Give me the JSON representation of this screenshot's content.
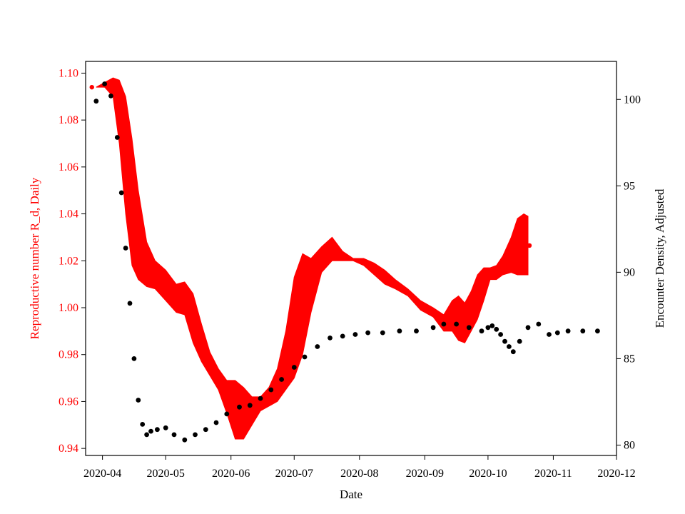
{
  "chart_data": {
    "type": "scatter",
    "xlabel": "Date",
    "ylabel_left": "Reproductive number R_d, Daily",
    "ylabel_right": "Encounter Density, Adjusted",
    "x_range": [
      "2020-03-24",
      "2020-12-01"
    ],
    "ylim_left": [
      0.937,
      1.105
    ],
    "ylim_right": [
      79.4,
      102.2
    ],
    "x_ticks": [
      "2020-04",
      "2020-05",
      "2020-06",
      "2020-07",
      "2020-08",
      "2020-09",
      "2020-10",
      "2020-11",
      "2020-12"
    ],
    "y_ticks_left": [
      "0.94",
      "0.96",
      "0.98",
      "1.00",
      "1.02",
      "1.04",
      "1.06",
      "1.08",
      "1.10"
    ],
    "y_ticks_right": [
      "80",
      "85",
      "90",
      "95",
      "100"
    ],
    "colors": {
      "left_axis": "#ff0000",
      "band": "#ff0000",
      "density": "#000000",
      "right_axis": "#000000"
    },
    "grid": false,
    "series": [
      {
        "axis": "left",
        "style": "band",
        "x": [
          "2020-03-29",
          "2020-04-02",
          "2020-04-06",
          "2020-04-09",
          "2020-04-12",
          "2020-04-15",
          "2020-04-18",
          "2020-04-22",
          "2020-04-26",
          "2020-05-01",
          "2020-05-06",
          "2020-05-10",
          "2020-05-14",
          "2020-05-18",
          "2020-05-22",
          "2020-05-26",
          "2020-05-30",
          "2020-06-03",
          "2020-06-07",
          "2020-06-11",
          "2020-06-15",
          "2020-06-19",
          "2020-06-23",
          "2020-06-27",
          "2020-07-01",
          "2020-07-05",
          "2020-07-09",
          "2020-07-14",
          "2020-07-19",
          "2020-07-24",
          "2020-07-29",
          "2020-08-03",
          "2020-08-08",
          "2020-08-13",
          "2020-08-18",
          "2020-08-24",
          "2020-08-30",
          "2020-09-05",
          "2020-09-10",
          "2020-09-14",
          "2020-09-17",
          "2020-09-20",
          "2020-09-23",
          "2020-09-26",
          "2020-09-29",
          "2020-10-02",
          "2020-10-05",
          "2020-10-08",
          "2020-10-12",
          "2020-10-15",
          "2020-10-18",
          "2020-10-20"
        ],
        "upper": [
          1.094,
          1.096,
          1.098,
          1.097,
          1.09,
          1.072,
          1.05,
          1.028,
          1.02,
          1.016,
          1.01,
          1.011,
          1.006,
          0.993,
          0.981,
          0.974,
          0.969,
          0.969,
          0.966,
          0.962,
          0.962,
          0.966,
          0.974,
          0.99,
          1.013,
          1.023,
          1.021,
          1.026,
          1.03,
          1.024,
          1.021,
          1.021,
          1.019,
          1.016,
          1.012,
          1.008,
          1.003,
          1.0,
          0.997,
          1.003,
          1.005,
          1.002,
          1.007,
          1.014,
          1.017,
          1.017,
          1.018,
          1.022,
          1.03,
          1.038,
          1.04,
          1.039
        ],
        "lower": [
          1.094,
          1.094,
          1.09,
          1.07,
          1.04,
          1.018,
          1.012,
          1.009,
          1.008,
          1.003,
          0.998,
          0.997,
          0.985,
          0.977,
          0.971,
          0.965,
          0.955,
          0.944,
          0.944,
          0.95,
          0.956,
          0.958,
          0.96,
          0.965,
          0.97,
          0.98,
          0.998,
          1.015,
          1.02,
          1.02,
          1.02,
          1.018,
          1.014,
          1.01,
          1.008,
          1.005,
          0.999,
          0.996,
          0.99,
          0.99,
          0.986,
          0.985,
          0.99,
          0.995,
          1.003,
          1.012,
          1.012,
          1.014,
          1.015,
          1.014,
          1.014,
          1.014
        ]
      },
      {
        "axis": "right",
        "style": "points",
        "x": [
          "2020-03-29",
          "2020-04-02",
          "2020-04-05",
          "2020-04-08",
          "2020-04-10",
          "2020-04-12",
          "2020-04-14",
          "2020-04-16",
          "2020-04-18",
          "2020-04-20",
          "2020-04-22",
          "2020-04-24",
          "2020-04-27",
          "2020-05-01",
          "2020-05-05",
          "2020-05-10",
          "2020-05-15",
          "2020-05-20",
          "2020-05-25",
          "2020-05-30",
          "2020-06-05",
          "2020-06-10",
          "2020-06-15",
          "2020-06-20",
          "2020-06-25",
          "2020-07-01",
          "2020-07-06",
          "2020-07-12",
          "2020-07-18",
          "2020-07-24",
          "2020-07-30",
          "2020-08-05",
          "2020-08-12",
          "2020-08-20",
          "2020-08-28",
          "2020-09-05",
          "2020-09-10",
          "2020-09-16",
          "2020-09-22",
          "2020-09-28",
          "2020-10-01",
          "2020-10-03",
          "2020-10-05",
          "2020-10-07",
          "2020-10-09",
          "2020-10-11",
          "2020-10-13",
          "2020-10-16",
          "2020-10-20",
          "2020-10-25",
          "2020-10-30",
          "2020-11-03",
          "2020-11-08",
          "2020-11-15",
          "2020-11-22"
        ],
        "y": [
          99.9,
          100.9,
          100.2,
          97.8,
          94.6,
          91.4,
          88.2,
          85.0,
          82.6,
          81.2,
          80.6,
          80.8,
          80.9,
          81.0,
          80.6,
          80.3,
          80.6,
          80.9,
          81.3,
          81.8,
          82.2,
          82.3,
          82.7,
          83.2,
          83.8,
          84.5,
          85.1,
          85.7,
          86.2,
          86.3,
          86.4,
          86.5,
          86.5,
          86.6,
          86.6,
          86.8,
          87.0,
          87.0,
          86.8,
          86.6,
          86.8,
          86.9,
          86.7,
          86.4,
          86.0,
          85.7,
          85.4,
          86.0,
          86.8,
          87.0,
          86.4,
          86.5,
          86.6,
          86.6,
          86.6
        ]
      }
    ]
  }
}
